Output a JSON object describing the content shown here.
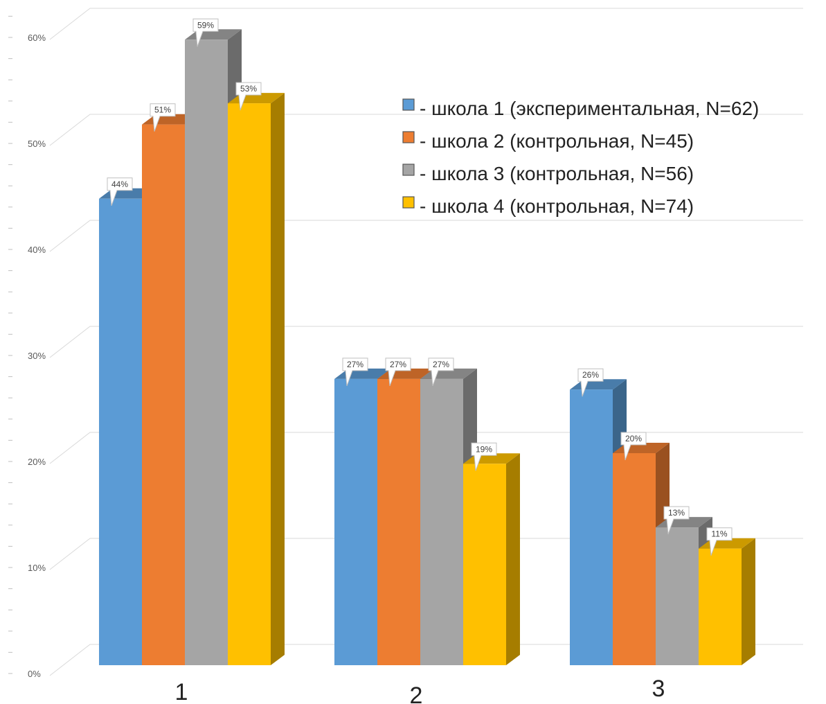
{
  "chart_data": {
    "type": "bar",
    "categories": [
      "1",
      "2",
      "3"
    ],
    "series": [
      {
        "name": "- школа 1 (экспериментальная, N=62)",
        "values": [
          44,
          27,
          26
        ],
        "labels": [
          "44%",
          "27%",
          "26%"
        ],
        "color": "#5b9bd5"
      },
      {
        "name": "- школа 2 (контрольная, N=45)",
        "values": [
          51,
          27,
          20
        ],
        "labels": [
          "51%",
          "27%",
          "20%"
        ],
        "color": "#ed7d31"
      },
      {
        "name": "- школа 3 (контрольная, N=56)",
        "values": [
          59,
          27,
          13
        ],
        "labels": [
          "59%",
          "27%",
          "13%"
        ],
        "color": "#a5a5a5"
      },
      {
        "name": "- школа 4 (контрольная, N=74)",
        "values": [
          53,
          19,
          11
        ],
        "labels": [
          "53%",
          "19%",
          "11%"
        ],
        "color": "#ffc000"
      }
    ],
    "y_ticks": [
      "0%",
      "10%",
      "20%",
      "30%",
      "40%",
      "50%",
      "60%"
    ],
    "ylim": [
      0,
      60
    ],
    "grid": true,
    "legend_position": "top-right",
    "title": "",
    "xlabel": "",
    "ylabel": ""
  }
}
